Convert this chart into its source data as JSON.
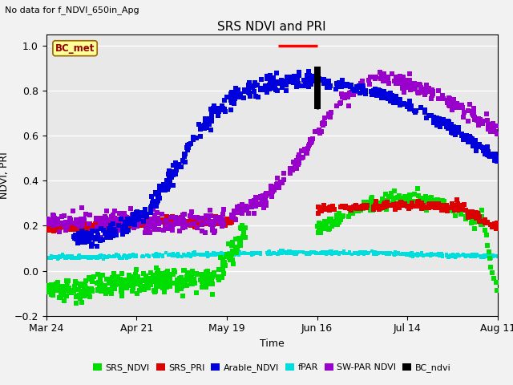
{
  "title": "SRS NDVI and PRI",
  "subtitle": "No data for f_NDVI_650in_Apg",
  "xlabel": "Time",
  "ylabel": "NDVI, PRI",
  "ylim": [
    -0.2,
    1.05
  ],
  "xlim_days": [
    0,
    140
  ],
  "x_ticks_labels": [
    "Mar 24",
    "Apr 21",
    "May 19",
    "Jun 16",
    "Jul 14",
    "Aug 11"
  ],
  "x_ticks_days": [
    0,
    28,
    56,
    84,
    112,
    140
  ],
  "background_color": "#e8e8e8",
  "figure_color": "#f2f2f2",
  "bc_met_box": {
    "text": "BC_met",
    "facecolor": "#ffff99",
    "edgecolor": "#996600",
    "textcolor": "#990000"
  },
  "red_line": {
    "x1": 72,
    "x2": 84,
    "y": 1.0,
    "color": "#ff0000",
    "linewidth": 2.5
  },
  "bc_ndvi_line": {
    "x": 84,
    "y1": 0.72,
    "y2": 0.9,
    "color": "black",
    "linewidth": 2
  },
  "series": {
    "SRS_NDVI": {
      "color": "#00dd00",
      "label": "SRS_NDVI",
      "ms": 3
    },
    "SRS_PRI": {
      "color": "#dd0000",
      "label": "SRS_PRI",
      "ms": 3
    },
    "Arable_NDVI": {
      "color": "#0000dd",
      "label": "Arable_NDVI",
      "ms": 3
    },
    "fPAR": {
      "color": "#00dddd",
      "label": "fPAR",
      "ms": 2
    },
    "SW_PAR_NDVI": {
      "color": "#9900cc",
      "label": "SW-PAR NDVI",
      "ms": 3
    },
    "BC_ndvi": {
      "color": "#000000",
      "label": "BC_ndvi",
      "ms": 3
    }
  }
}
